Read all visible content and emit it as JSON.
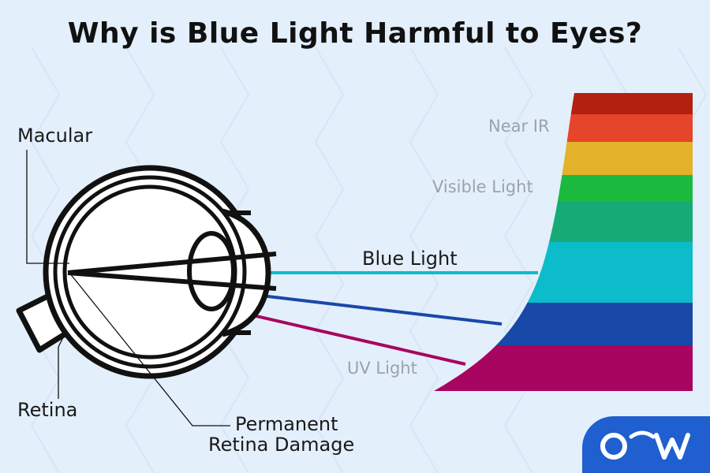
{
  "title": "Why is Blue Light Harmful to Eyes?",
  "labels": {
    "macular": "Macular",
    "retina": "Retina",
    "damage_line1": "Permanent",
    "damage_line2": "Retina Damage",
    "near_ir": "Near IR",
    "visible_light": "Visible Light",
    "blue_light": "Blue Light",
    "uv_light": "UV Light"
  },
  "colors": {
    "background": "#e3effb",
    "band_dark_red": "#b32010",
    "band_red": "#e5452b",
    "band_orange_yellow": "#e3b22a",
    "band_green": "#1bba3f",
    "band_teal_green": "#16ab76",
    "band_cyan": "#0cbccb",
    "band_blue": "#1848a8",
    "band_magenta": "#a80560",
    "blue_light_ray": "#0cbccb",
    "blue_ray": "#1848a8",
    "uv_ray": "#a80560",
    "logo_bg": "#1f5fcf"
  },
  "logo": {
    "name": "ow-logo"
  }
}
